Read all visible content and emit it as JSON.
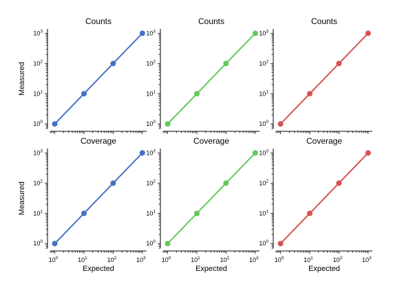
{
  "chart_data": [
    {
      "type": "line",
      "title": "Counts",
      "xlabel": "",
      "ylabel": "Measured",
      "xscale": "log",
      "yscale": "log",
      "xlim": [
        0.7,
        1400
      ],
      "ylim": [
        0.7,
        1400
      ],
      "color": "#4472c4",
      "series": [
        {
          "x": [
            1,
            10,
            100,
            1000
          ],
          "y": [
            1,
            10,
            100,
            1000
          ]
        }
      ]
    },
    {
      "type": "line",
      "title": "Counts",
      "xlabel": "",
      "ylabel": "",
      "xscale": "log",
      "yscale": "log",
      "xlim": [
        0.7,
        1400
      ],
      "ylim": [
        0.7,
        1400
      ],
      "color": "#63c75a",
      "series": [
        {
          "x": [
            1,
            10,
            100,
            1000
          ],
          "y": [
            1,
            10,
            100,
            1000
          ]
        }
      ]
    },
    {
      "type": "line",
      "title": "Counts",
      "xlabel": "",
      "ylabel": "",
      "xscale": "log",
      "yscale": "log",
      "xlim": [
        0.7,
        1400
      ],
      "ylim": [
        0.7,
        1400
      ],
      "color": "#d65250",
      "series": [
        {
          "x": [
            1,
            10,
            100,
            1000
          ],
          "y": [
            1,
            10,
            100,
            1000
          ]
        }
      ]
    },
    {
      "type": "line",
      "title": "Coverage",
      "xlabel": "Expected",
      "ylabel": "Measured",
      "xscale": "log",
      "yscale": "log",
      "xlim": [
        0.7,
        1400
      ],
      "ylim": [
        0.7,
        1400
      ],
      "color": "#4472c4",
      "series": [
        {
          "x": [
            1,
            10,
            100,
            1000
          ],
          "y": [
            1,
            10,
            100,
            1000
          ]
        }
      ]
    },
    {
      "type": "line",
      "title": "Coverage",
      "xlabel": "Expected",
      "ylabel": "",
      "xscale": "log",
      "yscale": "log",
      "xlim": [
        0.7,
        1400
      ],
      "ylim": [
        0.7,
        1400
      ],
      "color": "#63c75a",
      "series": [
        {
          "x": [
            1,
            10,
            100,
            1000
          ],
          "y": [
            1,
            10,
            100,
            1000
          ]
        }
      ]
    },
    {
      "type": "line",
      "title": "Coverage",
      "xlabel": "Expected",
      "ylabel": "",
      "xscale": "log",
      "yscale": "log",
      "xlim": [
        0.7,
        1400
      ],
      "ylim": [
        0.7,
        1400
      ],
      "color": "#d65250",
      "series": [
        {
          "x": [
            1,
            10,
            100,
            1000
          ],
          "y": [
            1,
            10,
            100,
            1000
          ]
        }
      ]
    }
  ],
  "tick_labels": [
    "10",
    "10",
    "10",
    "10"
  ],
  "tick_exponents": [
    "0",
    "1",
    "2",
    "3"
  ]
}
